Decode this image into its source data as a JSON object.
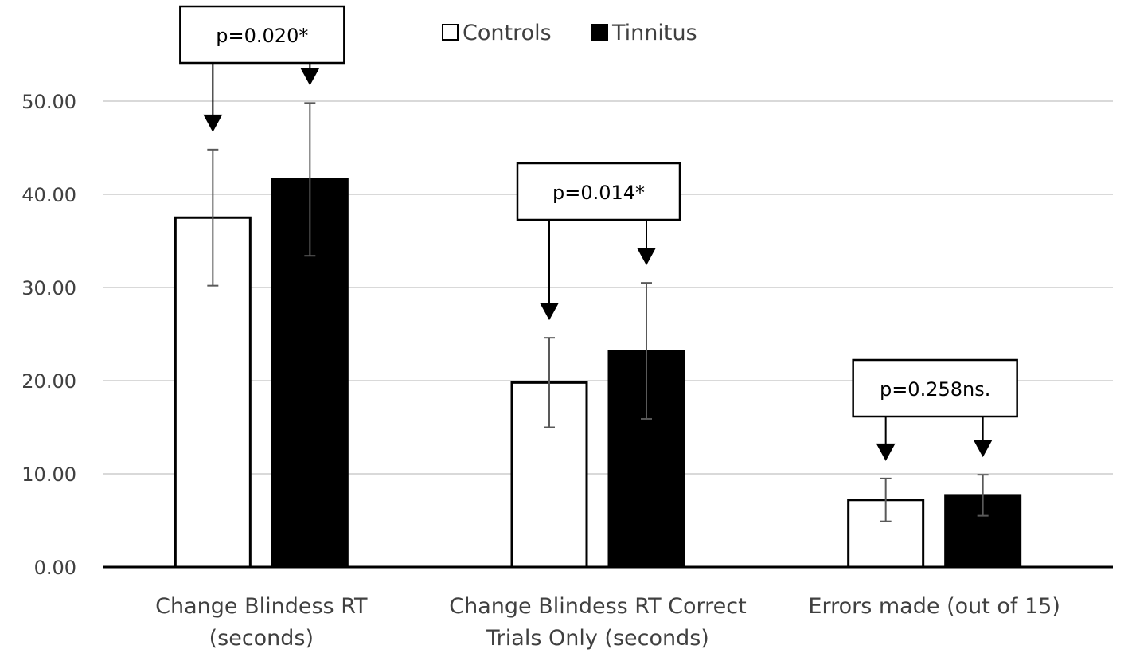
{
  "chart_data": {
    "type": "bar",
    "ylim": [
      0,
      50
    ],
    "yticks": [
      "0.00",
      "10.00",
      "20.00",
      "30.00",
      "40.00",
      "50.00"
    ],
    "grid": true,
    "legend_position": "top",
    "categories": [
      [
        "Change Blindess RT",
        "(seconds)"
      ],
      [
        "Change Blindess RT Correct",
        "Trials Only (seconds)"
      ],
      [
        "Errors made (out of 15)"
      ]
    ],
    "series": [
      {
        "name": "Controls",
        "color": "#ffffff",
        "values": [
          37.5,
          19.8,
          7.2
        ],
        "error": [
          7.3,
          4.8,
          2.3
        ]
      },
      {
        "name": "Tinnitus",
        "color": "#000000",
        "values": [
          41.6,
          23.2,
          7.7
        ],
        "error": [
          8.2,
          7.3,
          2.2
        ]
      }
    ],
    "annotations": [
      "p=0.020*",
      "p=0.014*",
      "p=0.258ns."
    ]
  }
}
